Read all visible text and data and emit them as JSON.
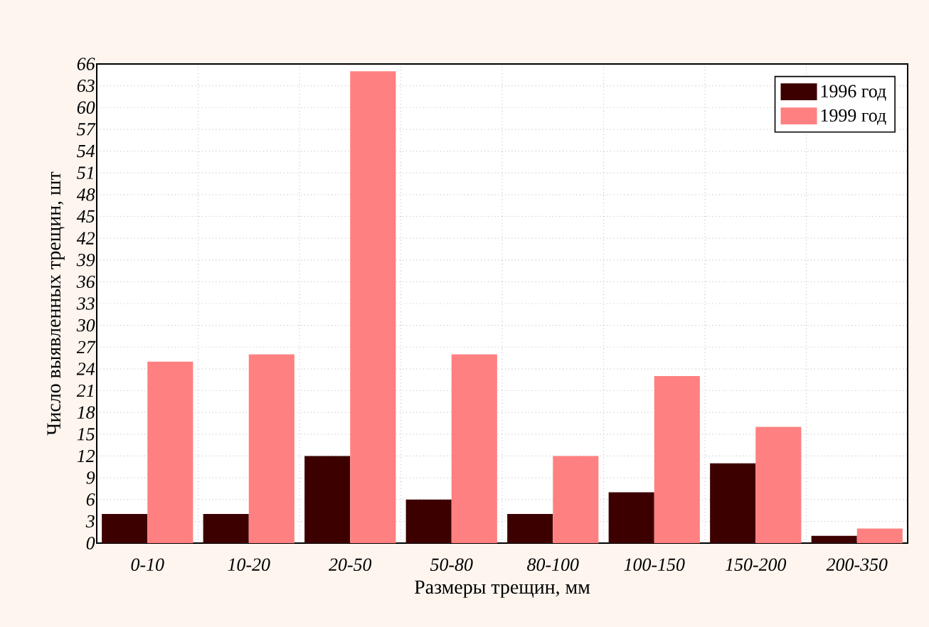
{
  "chart_data": {
    "type": "bar",
    "xlabel": "Размеры трещин, мм",
    "ylabel": "Число выявленных трещин, шт",
    "categories": [
      "0-10",
      "10-20",
      "20-50",
      "50-80",
      "80-100",
      "100-150",
      "150-200",
      "200-350"
    ],
    "series": [
      {
        "name": "1996 год",
        "color": "#3d0000",
        "values": [
          4,
          4,
          12,
          6,
          4,
          7,
          11,
          1
        ]
      },
      {
        "name": "1999 год",
        "color": "#ff8080",
        "values": [
          25,
          26,
          65,
          26,
          12,
          23,
          16,
          2
        ]
      }
    ],
    "ylim": [
      0,
      66
    ],
    "yticks": [
      0,
      3,
      6,
      9,
      12,
      15,
      18,
      21,
      24,
      27,
      30,
      33,
      36,
      39,
      42,
      45,
      48,
      51,
      54,
      57,
      60,
      63,
      66
    ],
    "grid": true,
    "legend": "top right"
  }
}
